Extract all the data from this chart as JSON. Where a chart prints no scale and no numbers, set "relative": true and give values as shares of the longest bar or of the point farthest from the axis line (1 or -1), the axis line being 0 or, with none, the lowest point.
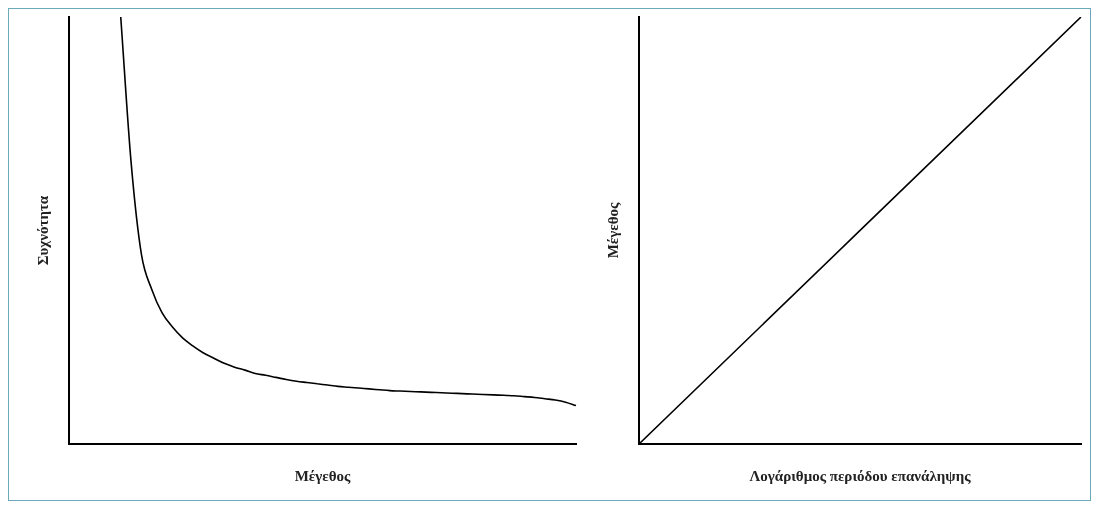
{
  "chart_data": [
    {
      "type": "line",
      "relative": true,
      "xlabel": "Μέγεθος",
      "ylabel": "Συχνότητα",
      "color": "#000000",
      "categories": [
        null,
        null,
        null,
        null,
        null,
        null,
        null,
        null,
        null,
        null,
        null,
        null,
        null,
        null,
        null,
        null,
        null,
        null,
        null,
        null,
        null,
        null,
        null,
        null,
        null,
        null,
        null,
        null,
        null,
        null,
        null,
        null,
        null,
        null,
        null,
        null,
        null,
        null,
        null,
        null,
        null,
        null,
        null,
        null,
        null,
        null,
        null,
        null,
        null,
        null
      ],
      "values": [
        null,
        null,
        null,
        null,
        null,
        1,
        0.66,
        0.444,
        0.362,
        0.307,
        0.274,
        0.248,
        0.229,
        0.213,
        0.201,
        0.189,
        0.18,
        0.173,
        0.165,
        0.161,
        0.156,
        0.151,
        0.147,
        0.144,
        0.141,
        0.138,
        0.135,
        0.133,
        0.131,
        0.129,
        0.127,
        0.125,
        0.124,
        0.123,
        0.122,
        0.121,
        0.12,
        0.119,
        0.118,
        0.117,
        0.116,
        0.115,
        0.114,
        0.113,
        0.111,
        0.109,
        0.106,
        0.103,
        0.098,
        0.09
      ]
    },
    {
      "type": "line",
      "relative": true,
      "xlabel": "Λογάριθμος περιόδου επανάληψης",
      "ylabel": "Μέγεθος",
      "color": "#000000",
      "categories": [
        null,
        null
      ],
      "values": [
        0,
        1
      ]
    }
  ]
}
